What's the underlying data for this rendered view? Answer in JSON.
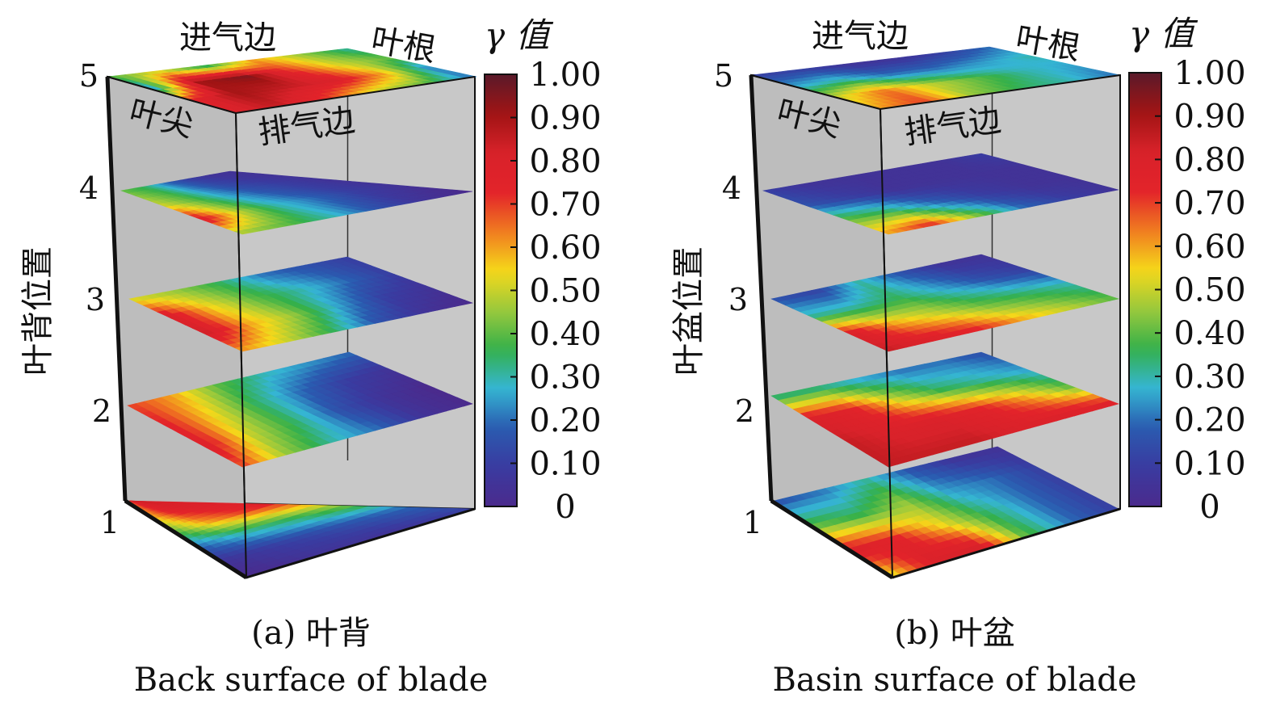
{
  "colorbar_ticks": [
    "1.00",
    "0.90",
    "0.80",
    "0.70",
    "0.60",
    "0.50",
    "0.40",
    "0.30",
    "0.20",
    "0.10",
    "0"
  ],
  "colorbar_colors": [
    "#5a1a2a",
    "#a01414",
    "#d8222a",
    "#e3232a",
    "#f07b20",
    "#f5d81a",
    "#9ac93c",
    "#34b04a",
    "#35b5d3",
    "#2a5bb0",
    "#3a3ba0",
    "#4b2a8c"
  ],
  "panels": [
    {
      "key": "a",
      "caption_cn": "(a) 叶背",
      "caption_en": "Back surface of blade",
      "ylabel": "叶背位置",
      "corner_labels": {
        "inlet": "进气边",
        "root": "叶根",
        "tip": "叶尖",
        "outlet": "排气边"
      },
      "cbar_title": "γ 值",
      "levels": [
        "1",
        "2",
        "3",
        "4",
        "5"
      ]
    },
    {
      "key": "b",
      "caption_cn": "(b) 叶盆",
      "caption_en": "Basin surface of blade",
      "ylabel": "叶盆位置",
      "corner_labels": {
        "inlet": "进气边",
        "root": "叶根",
        "tip": "叶尖",
        "outlet": "排气边"
      },
      "cbar_title": "γ 值",
      "levels": [
        "1",
        "2",
        "3",
        "4",
        "5"
      ]
    }
  ],
  "chart_data": [
    {
      "type": "heatmap",
      "title": "(a) 叶背 Back surface of blade",
      "zlabel": "叶背位置",
      "z_levels": [
        1,
        2,
        3,
        4,
        5
      ],
      "colorbar": {
        "label": "γ 值",
        "range": [
          0,
          1.0
        ],
        "ticks": [
          0,
          0.1,
          0.2,
          0.3,
          0.4,
          0.5,
          0.6,
          0.7,
          0.8,
          0.9,
          1.0
        ]
      },
      "axes_words": [
        "进气边",
        "叶根",
        "叶尖",
        "排气边"
      ],
      "slices": [
        {
          "level": 1,
          "grid": [
            [
              0.8,
              0.8,
              0.75,
              0.45,
              0.2,
              0.1
            ],
            [
              0.85,
              0.8,
              0.7,
              0.35,
              0.15,
              0.05
            ],
            [
              0.8,
              0.75,
              0.6,
              0.3,
              0.1,
              0.05
            ],
            [
              0.7,
              0.6,
              0.4,
              0.2,
              0.05,
              0.0
            ]
          ]
        },
        {
          "level": 2,
          "grid": [
            [
              0.7,
              0.6,
              0.4,
              0.3,
              0.25,
              0.2
            ],
            [
              0.75,
              0.55,
              0.35,
              0.2,
              0.1,
              0.05
            ],
            [
              0.8,
              0.5,
              0.35,
              0.15,
              0.05,
              0.0
            ],
            [
              0.7,
              0.45,
              0.3,
              0.2,
              0.05,
              0.0
            ]
          ]
        },
        {
          "level": 3,
          "grid": [
            [
              0.5,
              0.45,
              0.35,
              0.2,
              0.15,
              0.1
            ],
            [
              0.8,
              0.55,
              0.4,
              0.3,
              0.2,
              0.1
            ],
            [
              0.85,
              0.6,
              0.45,
              0.25,
              0.1,
              0.05
            ],
            [
              0.6,
              0.5,
              0.35,
              0.15,
              0.05,
              0.0
            ]
          ]
        },
        {
          "level": 4,
          "grid": [
            [
              0.4,
              0.35,
              0.2,
              0.1,
              0.05,
              0.05
            ],
            [
              0.5,
              0.4,
              0.25,
              0.15,
              0.1,
              0.05
            ],
            [
              0.8,
              0.5,
              0.3,
              0.2,
              0.1,
              0.05
            ],
            [
              0.45,
              0.4,
              0.3,
              0.15,
              0.05,
              0.0
            ]
          ]
        },
        {
          "level": 5,
          "grid": [
            [
              0.4,
              0.5,
              0.3,
              0.6,
              0.45,
              0.3
            ],
            [
              0.2,
              0.9,
              0.95,
              0.7,
              0.5,
              0.4
            ],
            [
              0.75,
              0.9,
              0.85,
              0.8,
              0.6,
              0.2
            ],
            [
              0.8,
              0.85,
              0.7,
              0.5,
              0.4,
              0.2
            ]
          ]
        }
      ]
    },
    {
      "type": "heatmap",
      "title": "(b) 叶盆 Basin surface of blade",
      "zlabel": "叶盆位置",
      "z_levels": [
        1,
        2,
        3,
        4,
        5
      ],
      "colorbar": {
        "label": "γ 值",
        "range": [
          0,
          1.0
        ],
        "ticks": [
          0,
          0.1,
          0.2,
          0.3,
          0.4,
          0.5,
          0.6,
          0.7,
          0.8,
          0.9,
          1.0
        ]
      },
      "axes_words": [
        "进气边",
        "叶根",
        "叶尖",
        "排气边"
      ],
      "slices": [
        {
          "level": 1,
          "grid": [
            [
              0.15,
              0.2,
              0.3,
              0.15,
              0.05,
              0.05
            ],
            [
              0.4,
              0.35,
              0.45,
              0.25,
              0.2,
              0.1
            ],
            [
              0.8,
              0.75,
              0.55,
              0.35,
              0.2,
              0.1
            ],
            [
              0.5,
              0.8,
              0.85,
              0.4,
              0.2,
              0.1
            ]
          ]
        },
        {
          "level": 2,
          "grid": [
            [
              0.3,
              0.3,
              0.25,
              0.2,
              0.2,
              0.15
            ],
            [
              0.8,
              0.75,
              0.5,
              0.35,
              0.3,
              0.25
            ],
            [
              0.85,
              0.8,
              0.8,
              0.75,
              0.6,
              0.4
            ],
            [
              0.85,
              0.85,
              0.85,
              0.8,
              0.8,
              0.8
            ]
          ]
        },
        {
          "level": 3,
          "grid": [
            [
              0.15,
              0.1,
              0.3,
              0.15,
              0.05,
              0.05
            ],
            [
              0.3,
              0.3,
              0.35,
              0.25,
              0.15,
              0.1
            ],
            [
              0.8,
              0.6,
              0.5,
              0.4,
              0.35,
              0.3
            ],
            [
              0.85,
              0.8,
              0.75,
              0.6,
              0.5,
              0.4
            ]
          ]
        },
        {
          "level": 4,
          "grid": [
            [
              0.1,
              0.05,
              0.05,
              0.05,
              0.05,
              0.1
            ],
            [
              0.15,
              0.1,
              0.05,
              0.05,
              0.05,
              0.05
            ],
            [
              0.4,
              0.35,
              0.2,
              0.1,
              0.05,
              0.05
            ],
            [
              0.6,
              0.75,
              0.45,
              0.2,
              0.1,
              0.05
            ]
          ]
        },
        {
          "level": 5,
          "grid": [
            [
              0.1,
              0.1,
              0.05,
              0.05,
              0.1,
              0.2
            ],
            [
              0.25,
              0.3,
              0.2,
              0.2,
              0.25,
              0.3
            ],
            [
              0.5,
              0.65,
              0.5,
              0.4,
              0.3,
              0.25
            ],
            [
              0.6,
              0.7,
              0.45,
              0.35,
              0.3,
              0.2
            ]
          ]
        }
      ]
    }
  ]
}
